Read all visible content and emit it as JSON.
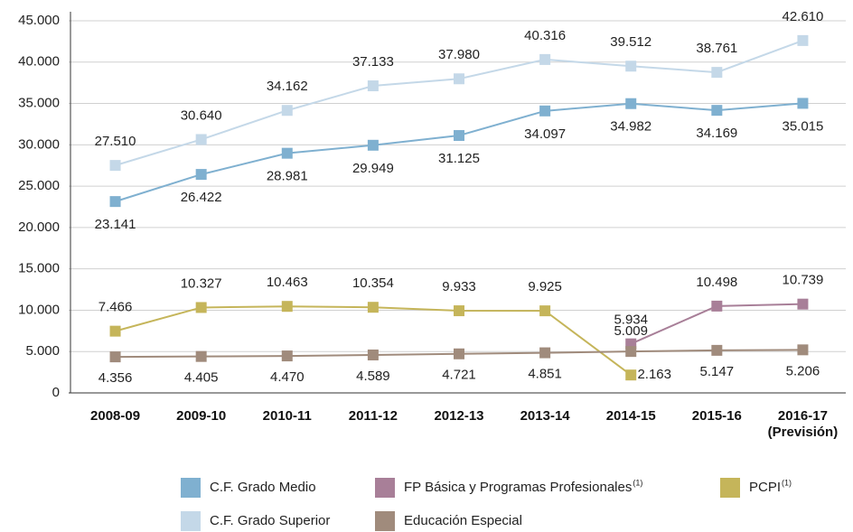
{
  "chart_data": {
    "type": "line",
    "categories": [
      "2008-09",
      "2009-10",
      "2010-11",
      "2011-12",
      "2012-13",
      "2013-14",
      "2014-15",
      "2015-16",
      "2016-17 (Previsión)"
    ],
    "ylim": [
      0,
      45000
    ],
    "yticks": [
      0,
      {
        "value": 5000,
        "label": "5.000"
      },
      {
        "value": 10000,
        "label": "10.000"
      },
      {
        "value": 15000,
        "label": "15.000"
      },
      {
        "value": 20000,
        "label": "20.000"
      },
      {
        "value": 25000,
        "label": "25.000"
      },
      {
        "value": 30000,
        "label": "30.000"
      },
      {
        "value": 35000,
        "label": "35.000"
      },
      {
        "value": 40000,
        "label": "40.000"
      },
      {
        "value": 45000,
        "label": "45.000"
      }
    ],
    "grid": true,
    "series": [
      {
        "name": "C.F. Grado Medio",
        "color": "#7fb0d0",
        "values": [
          23141,
          26422,
          28981,
          29949,
          31125,
          34097,
          34982,
          34169,
          35015
        ],
        "value_labels": [
          "23.141",
          "26.422",
          "28.981",
          "29.949",
          "31.125",
          "34.097",
          "34.982",
          "34.169",
          "35.015"
        ]
      },
      {
        "name": "C.F. Grado Superior",
        "color": "#c4d8e8",
        "values": [
          27510,
          30640,
          34162,
          37133,
          37980,
          40316,
          39512,
          38761,
          42610
        ],
        "value_labels": [
          "27.510",
          "30.640",
          "34.162",
          "37.133",
          "37.980",
          "40.316",
          "39.512",
          "38.761",
          "42.610"
        ]
      },
      {
        "name": "FP Básica y Programas Profesionales",
        "note": "(1)",
        "color": "#a87f98",
        "values": [
          null,
          null,
          null,
          null,
          null,
          null,
          5934,
          10498,
          10739
        ],
        "value_labels": [
          null,
          null,
          null,
          null,
          null,
          null,
          "5.934",
          "10.498",
          "10.739"
        ]
      },
      {
        "name": "PCPI",
        "note": "(1)",
        "color": "#c5b55a",
        "values": [
          7466,
          10327,
          10463,
          10354,
          9933,
          9925,
          2163,
          null,
          null
        ],
        "value_labels": [
          "7.466",
          "10.327",
          "10.463",
          "10.354",
          "9.933",
          "9.925",
          "2.163",
          null,
          null
        ]
      },
      {
        "name": "Educación Especial",
        "color": "#a08b7c",
        "values": [
          4356,
          4405,
          4470,
          4589,
          4721,
          4851,
          5009,
          5147,
          5206
        ],
        "value_labels": [
          "4.356",
          "4.405",
          "4.470",
          "4.589",
          "4.721",
          "4.851",
          "5.009",
          "5.147",
          "5.206"
        ]
      }
    ]
  }
}
